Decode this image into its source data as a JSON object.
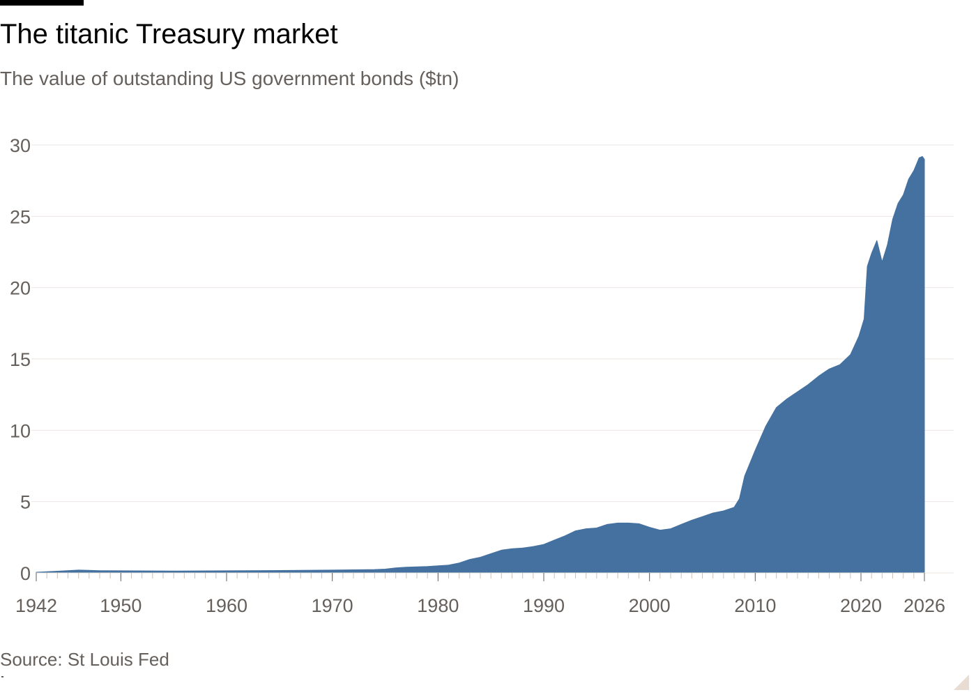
{
  "header": {
    "title": "The titanic Treasury market",
    "subtitle": "The value of outstanding US government bonds ($tn)"
  },
  "footer": {
    "source": "Source: St Louis Fed"
  },
  "colors": {
    "series": "#44719f",
    "grid": "#ebe6e2",
    "axis": "#66605c",
    "tick_text": "#66605c"
  },
  "chart_data": {
    "type": "area",
    "title": "The titanic Treasury market",
    "subtitle": "The value of outstanding US government bonds ($tn)",
    "xlabel": "",
    "ylabel": "",
    "xlim": [
      1942,
      2026
    ],
    "ylim": [
      0,
      30
    ],
    "grid": true,
    "legend": "none",
    "x_ticks": [
      1942,
      1950,
      1960,
      1970,
      1980,
      1990,
      2000,
      2010,
      2020,
      2026
    ],
    "y_ticks": [
      0,
      5,
      10,
      15,
      20,
      25,
      30
    ],
    "series": [
      {
        "x": [
          1942,
          1944,
          1946,
          1948,
          1950,
          1955,
          1960,
          1965,
          1970,
          1972,
          1974,
          1975,
          1976,
          1977,
          1978,
          1979,
          1980,
          1981,
          1982,
          1983,
          1984,
          1985,
          1986,
          1987,
          1988,
          1989,
          1990,
          1991,
          1992,
          1993,
          1994,
          1995,
          1996,
          1997,
          1998,
          1999,
          2000,
          2001,
          2002,
          2003,
          2004,
          2005,
          2006,
          2007,
          2008,
          2008.5,
          2009,
          2010,
          2011,
          2012,
          2013,
          2014,
          2015,
          2016,
          2017,
          2018,
          2019,
          2019.8,
          2020.3,
          2020.6,
          2021,
          2021.5,
          2022,
          2022.5,
          2023,
          2023.5,
          2024,
          2024.5,
          2025,
          2025.5,
          2025.8,
          2026
        ],
        "y": [
          0.05,
          0.12,
          0.2,
          0.16,
          0.15,
          0.13,
          0.15,
          0.17,
          0.2,
          0.22,
          0.24,
          0.27,
          0.35,
          0.4,
          0.43,
          0.45,
          0.5,
          0.55,
          0.7,
          0.95,
          1.1,
          1.35,
          1.6,
          1.7,
          1.75,
          1.85,
          2.0,
          2.3,
          2.6,
          2.95,
          3.1,
          3.15,
          3.4,
          3.5,
          3.5,
          3.45,
          3.2,
          3.0,
          3.1,
          3.4,
          3.7,
          3.95,
          4.2,
          4.35,
          4.6,
          5.2,
          6.8,
          8.6,
          10.3,
          11.6,
          12.2,
          12.7,
          13.2,
          13.8,
          14.3,
          14.6,
          15.3,
          16.6,
          17.8,
          21.5,
          22.4,
          23.3,
          21.8,
          23.0,
          24.8,
          25.9,
          26.5,
          27.6,
          28.2,
          29.1,
          29.2,
          29.0
        ]
      }
    ]
  }
}
